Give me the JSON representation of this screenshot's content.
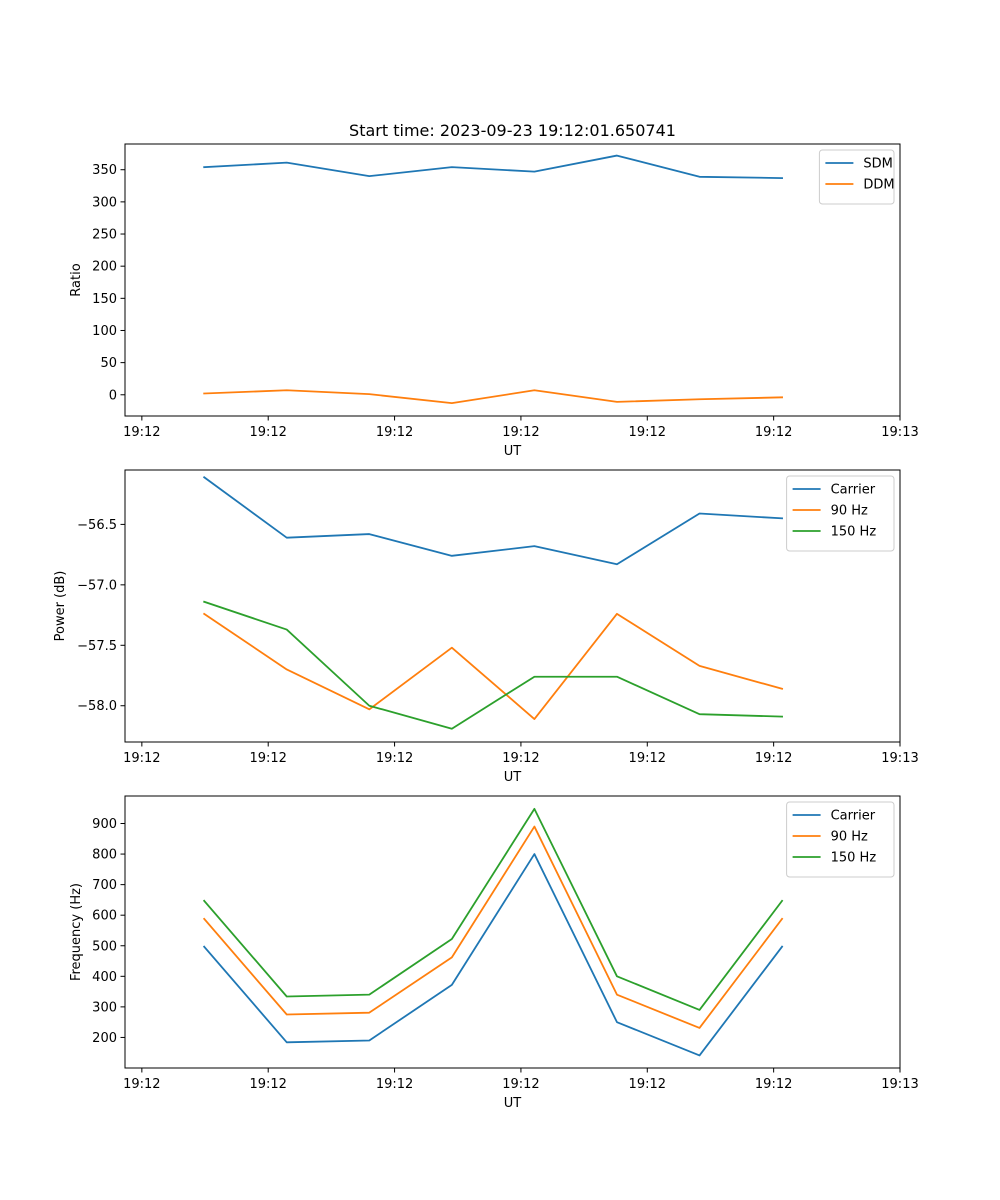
{
  "figure_title": "Start time: 2023-09-23 19:12:01.650741",
  "chart_data": [
    {
      "type": "line",
      "title": "Start time: 2023-09-23 19:12:01.650741",
      "xlabel": "UT",
      "ylabel": "Ratio",
      "xlim": [
        -0.2,
        9.0
      ],
      "ylim": [
        -33,
        390
      ],
      "x_ticks": [
        {
          "v": 0,
          "label": "19:12"
        },
        {
          "v": 1.5,
          "label": "19:12"
        },
        {
          "v": 3,
          "label": "19:12"
        },
        {
          "v": 4.5,
          "label": "19:12"
        },
        {
          "v": 6,
          "label": "19:12"
        },
        {
          "v": 7.5,
          "label": "19:12"
        },
        {
          "v": 9,
          "label": "19:13"
        }
      ],
      "y_ticks": [
        {
          "v": 0,
          "label": "0"
        },
        {
          "v": 50,
          "label": "50"
        },
        {
          "v": 100,
          "label": "100"
        },
        {
          "v": 150,
          "label": "150"
        },
        {
          "v": 200,
          "label": "200"
        },
        {
          "v": 250,
          "label": "250"
        },
        {
          "v": 300,
          "label": "300"
        },
        {
          "v": 350,
          "label": "350"
        }
      ],
      "x": [
        0.74,
        1.72,
        2.7,
        3.68,
        4.66,
        5.64,
        6.62,
        7.6
      ],
      "series": [
        {
          "name": "SDM",
          "color": "#1f77b4",
          "values": [
            354,
            361,
            340,
            354,
            347,
            372,
            339,
            337
          ]
        },
        {
          "name": "DDM",
          "color": "#ff7f0e",
          "values": [
            2,
            7,
            1,
            -13,
            7,
            -11,
            -7,
            -4
          ]
        }
      ],
      "legend": "top-right"
    },
    {
      "type": "line",
      "title": "",
      "xlabel": "UT",
      "ylabel": "Power (dB)",
      "xlim": [
        -0.2,
        9.0
      ],
      "ylim": [
        -58.3,
        -56.05
      ],
      "x_ticks": [
        {
          "v": 0,
          "label": "19:12"
        },
        {
          "v": 1.5,
          "label": "19:12"
        },
        {
          "v": 3,
          "label": "19:12"
        },
        {
          "v": 4.5,
          "label": "19:12"
        },
        {
          "v": 6,
          "label": "19:12"
        },
        {
          "v": 7.5,
          "label": "19:12"
        },
        {
          "v": 9,
          "label": "19:13"
        }
      ],
      "y_ticks": [
        {
          "v": -58.0,
          "label": "−58.0"
        },
        {
          "v": -57.5,
          "label": "−57.5"
        },
        {
          "v": -57.0,
          "label": "−57.0"
        },
        {
          "v": -56.5,
          "label": "−56.5"
        }
      ],
      "x": [
        0.74,
        1.72,
        2.7,
        3.68,
        4.66,
        5.64,
        6.62,
        7.6
      ],
      "series": [
        {
          "name": "Carrier",
          "color": "#1f77b4",
          "values": [
            -56.11,
            -56.61,
            -56.58,
            -56.76,
            -56.68,
            -56.83,
            -56.41,
            -56.45
          ]
        },
        {
          "name": "90 Hz",
          "color": "#ff7f0e",
          "values": [
            -57.24,
            -57.7,
            -58.03,
            -57.52,
            -58.11,
            -57.24,
            -57.67,
            -57.86
          ]
        },
        {
          "name": "150 Hz",
          "color": "#2ca02c",
          "values": [
            -57.14,
            -57.37,
            -58.0,
            -58.19,
            -57.76,
            -57.76,
            -58.07,
            -58.09
          ]
        }
      ],
      "legend": "top-right"
    },
    {
      "type": "line",
      "title": "",
      "xlabel": "UT",
      "ylabel": "Frequency (Hz)",
      "xlim": [
        -0.2,
        9.0
      ],
      "ylim": [
        100,
        990
      ],
      "x_ticks": [
        {
          "v": 0,
          "label": "19:12"
        },
        {
          "v": 1.5,
          "label": "19:12"
        },
        {
          "v": 3,
          "label": "19:12"
        },
        {
          "v": 4.5,
          "label": "19:12"
        },
        {
          "v": 6,
          "label": "19:12"
        },
        {
          "v": 7.5,
          "label": "19:12"
        },
        {
          "v": 9,
          "label": "19:13"
        }
      ],
      "y_ticks": [
        {
          "v": 200,
          "label": "200"
        },
        {
          "v": 300,
          "label": "300"
        },
        {
          "v": 400,
          "label": "400"
        },
        {
          "v": 500,
          "label": "500"
        },
        {
          "v": 600,
          "label": "600"
        },
        {
          "v": 700,
          "label": "700"
        },
        {
          "v": 800,
          "label": "800"
        },
        {
          "v": 900,
          "label": "900"
        }
      ],
      "x": [
        0.74,
        1.72,
        2.7,
        3.68,
        4.66,
        5.64,
        6.62,
        7.6
      ],
      "series": [
        {
          "name": "Carrier",
          "color": "#1f77b4",
          "values": [
            497,
            184,
            190,
            372,
            800,
            250,
            141,
            497
          ]
        },
        {
          "name": "90 Hz",
          "color": "#ff7f0e",
          "values": [
            588,
            275,
            281,
            462,
            890,
            340,
            231,
            588
          ]
        },
        {
          "name": "150 Hz",
          "color": "#2ca02c",
          "values": [
            647,
            334,
            340,
            522,
            948,
            400,
            290,
            647
          ]
        }
      ],
      "legend": "top-right"
    }
  ]
}
